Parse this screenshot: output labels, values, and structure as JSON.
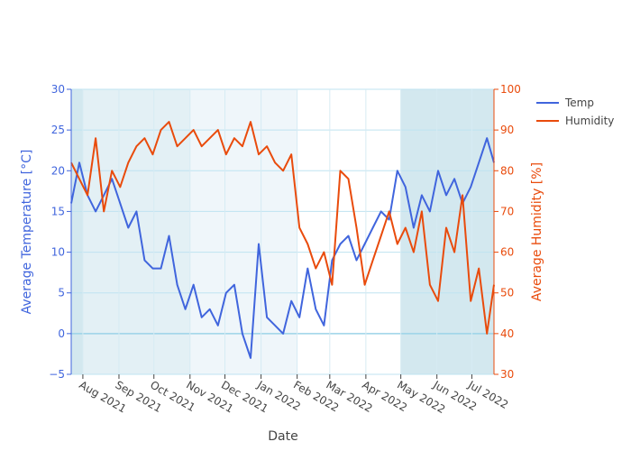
{
  "chart_data": {
    "type": "line",
    "x_axis": {
      "label": "Date",
      "ticks": [
        "Aug 2021",
        "Sep 2021",
        "Oct 2021",
        "Nov 2021",
        "Dec 2021",
        "Jan 2022",
        "Feb 2022",
        "Mar 2022",
        "Apr 2022",
        "May 2022",
        "Jun 2022",
        "Jul 2022"
      ],
      "range": [
        "2021-07-22",
        "2022-07-20"
      ]
    },
    "y_left": {
      "label": "Average Temperature [°C]",
      "range": [
        -5,
        30
      ],
      "ticks": [
        -5,
        0,
        5,
        10,
        15,
        20,
        25,
        30
      ],
      "color": "#4065dd"
    },
    "y_right": {
      "label": "Average Humidity [%]",
      "range": [
        30,
        100
      ],
      "ticks": [
        30,
        40,
        50,
        60,
        70,
        80,
        90,
        100
      ],
      "color": "#e94b0c"
    },
    "legend": {
      "placement": "top-right outside plot"
    },
    "grid": true,
    "shaded_bands": [
      {
        "start": "2021-07-22",
        "end": "2021-08-01",
        "shade": "strong"
      },
      {
        "start": "2021-08-01",
        "end": "2021-11-01",
        "shade": "medium"
      },
      {
        "start": "2021-11-01",
        "end": "2022-02-01",
        "shade": "light"
      },
      {
        "start": "2022-02-01",
        "end": "2022-05-01",
        "shade": "none"
      },
      {
        "start": "2022-05-01",
        "end": "2022-07-20",
        "shade": "strong"
      }
    ],
    "series": [
      {
        "name": "Temp",
        "axis": "left",
        "color": "#4065dd",
        "x": [
          "2021-07-22",
          "2021-07-29",
          "2021-08-05",
          "2021-08-12",
          "2021-08-19",
          "2021-08-26",
          "2021-09-02",
          "2021-09-09",
          "2021-09-16",
          "2021-09-23",
          "2021-09-30",
          "2021-10-07",
          "2021-10-14",
          "2021-10-21",
          "2021-10-28",
          "2021-11-04",
          "2021-11-11",
          "2021-11-18",
          "2021-11-25",
          "2021-12-02",
          "2021-12-09",
          "2021-12-16",
          "2021-12-23",
          "2021-12-30",
          "2022-01-06",
          "2022-01-13",
          "2022-01-20",
          "2022-01-27",
          "2022-02-03",
          "2022-02-10",
          "2022-02-17",
          "2022-02-24",
          "2022-03-03",
          "2022-03-10",
          "2022-03-17",
          "2022-03-24",
          "2022-03-31",
          "2022-04-07",
          "2022-04-14",
          "2022-04-21",
          "2022-04-28",
          "2022-05-05",
          "2022-05-12",
          "2022-05-19",
          "2022-05-26",
          "2022-06-02",
          "2022-06-09",
          "2022-06-16",
          "2022-06-23",
          "2022-06-30",
          "2022-07-07",
          "2022-07-14",
          "2022-07-20"
        ],
        "y": [
          16,
          21,
          17,
          15,
          17,
          19,
          16,
          13,
          15,
          9,
          8,
          8,
          12,
          6,
          3,
          6,
          2,
          3,
          1,
          5,
          6,
          0,
          -3,
          11,
          2,
          1,
          0,
          4,
          2,
          8,
          3,
          1,
          9,
          11,
          12,
          9,
          11,
          13,
          15,
          14,
          20,
          18,
          13,
          17,
          15,
          20,
          17,
          19,
          16,
          18,
          21,
          24,
          21
        ]
      },
      {
        "name": "Humidity",
        "axis": "right",
        "color": "#e94b0c",
        "x": [
          "2021-07-22",
          "2021-07-29",
          "2021-08-05",
          "2021-08-12",
          "2021-08-19",
          "2021-08-26",
          "2021-09-02",
          "2021-09-09",
          "2021-09-16",
          "2021-09-23",
          "2021-09-30",
          "2021-10-07",
          "2021-10-14",
          "2021-10-21",
          "2021-10-28",
          "2021-11-04",
          "2021-11-11",
          "2021-11-18",
          "2021-11-25",
          "2021-12-02",
          "2021-12-09",
          "2021-12-16",
          "2021-12-23",
          "2021-12-30",
          "2022-01-06",
          "2022-01-13",
          "2022-01-20",
          "2022-01-27",
          "2022-02-03",
          "2022-02-10",
          "2022-02-17",
          "2022-02-24",
          "2022-03-03",
          "2022-03-10",
          "2022-03-17",
          "2022-03-24",
          "2022-03-31",
          "2022-04-07",
          "2022-04-14",
          "2022-04-21",
          "2022-04-28",
          "2022-05-05",
          "2022-05-12",
          "2022-05-19",
          "2022-05-26",
          "2022-06-02",
          "2022-06-09",
          "2022-06-16",
          "2022-06-23",
          "2022-06-30",
          "2022-07-07",
          "2022-07-14",
          "2022-07-20"
        ],
        "y": [
          82,
          78,
          74,
          88,
          70,
          80,
          76,
          82,
          86,
          88,
          84,
          90,
          92,
          86,
          88,
          90,
          86,
          88,
          90,
          84,
          88,
          86,
          92,
          84,
          86,
          82,
          80,
          84,
          66,
          62,
          56,
          60,
          52,
          80,
          78,
          66,
          52,
          58,
          64,
          70,
          62,
          66,
          60,
          70,
          52,
          48,
          66,
          60,
          74,
          48,
          56,
          40,
          52
        ]
      }
    ]
  }
}
